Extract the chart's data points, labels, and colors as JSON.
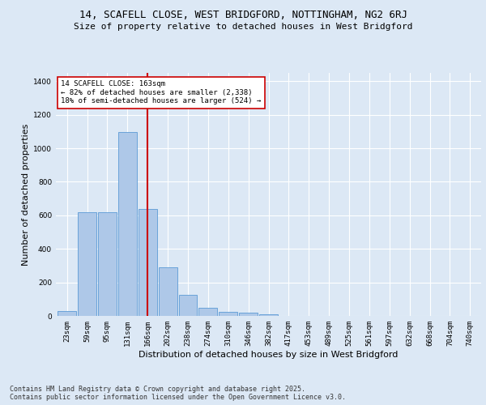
{
  "title_line1": "14, SCAFELL CLOSE, WEST BRIDGFORD, NOTTINGHAM, NG2 6RJ",
  "title_line2": "Size of property relative to detached houses in West Bridgford",
  "xlabel": "Distribution of detached houses by size in West Bridgford",
  "ylabel": "Number of detached properties",
  "bin_labels": [
    "23sqm",
    "59sqm",
    "95sqm",
    "131sqm",
    "166sqm",
    "202sqm",
    "238sqm",
    "274sqm",
    "310sqm",
    "346sqm",
    "382sqm",
    "417sqm",
    "453sqm",
    "489sqm",
    "525sqm",
    "561sqm",
    "597sqm",
    "632sqm",
    "668sqm",
    "704sqm",
    "740sqm"
  ],
  "bar_values": [
    30,
    620,
    620,
    1095,
    640,
    290,
    125,
    50,
    25,
    20,
    10,
    0,
    0,
    0,
    0,
    0,
    0,
    0,
    0,
    0,
    0
  ],
  "bar_color": "#aec8e8",
  "bar_edge_color": "#5b9bd5",
  "vline_color": "#cc0000",
  "vline_pos": 4.0,
  "annotation_text": "14 SCAFELL CLOSE: 163sqm\n← 82% of detached houses are smaller (2,338)\n18% of semi-detached houses are larger (524) →",
  "annotation_box_color": "#ffffff",
  "annotation_border_color": "#cc0000",
  "ylim": [
    0,
    1450
  ],
  "yticks": [
    0,
    200,
    400,
    600,
    800,
    1000,
    1200,
    1400
  ],
  "footnote": "Contains HM Land Registry data © Crown copyright and database right 2025.\nContains public sector information licensed under the Open Government Licence v3.0.",
  "background_color": "#dce8f5",
  "plot_bg_color": "#dce8f5",
  "grid_color": "#ffffff",
  "title_fontsize": 9,
  "subtitle_fontsize": 8,
  "axis_label_fontsize": 8,
  "tick_fontsize": 6.5,
  "annotation_fontsize": 6.5,
  "footnote_fontsize": 6
}
